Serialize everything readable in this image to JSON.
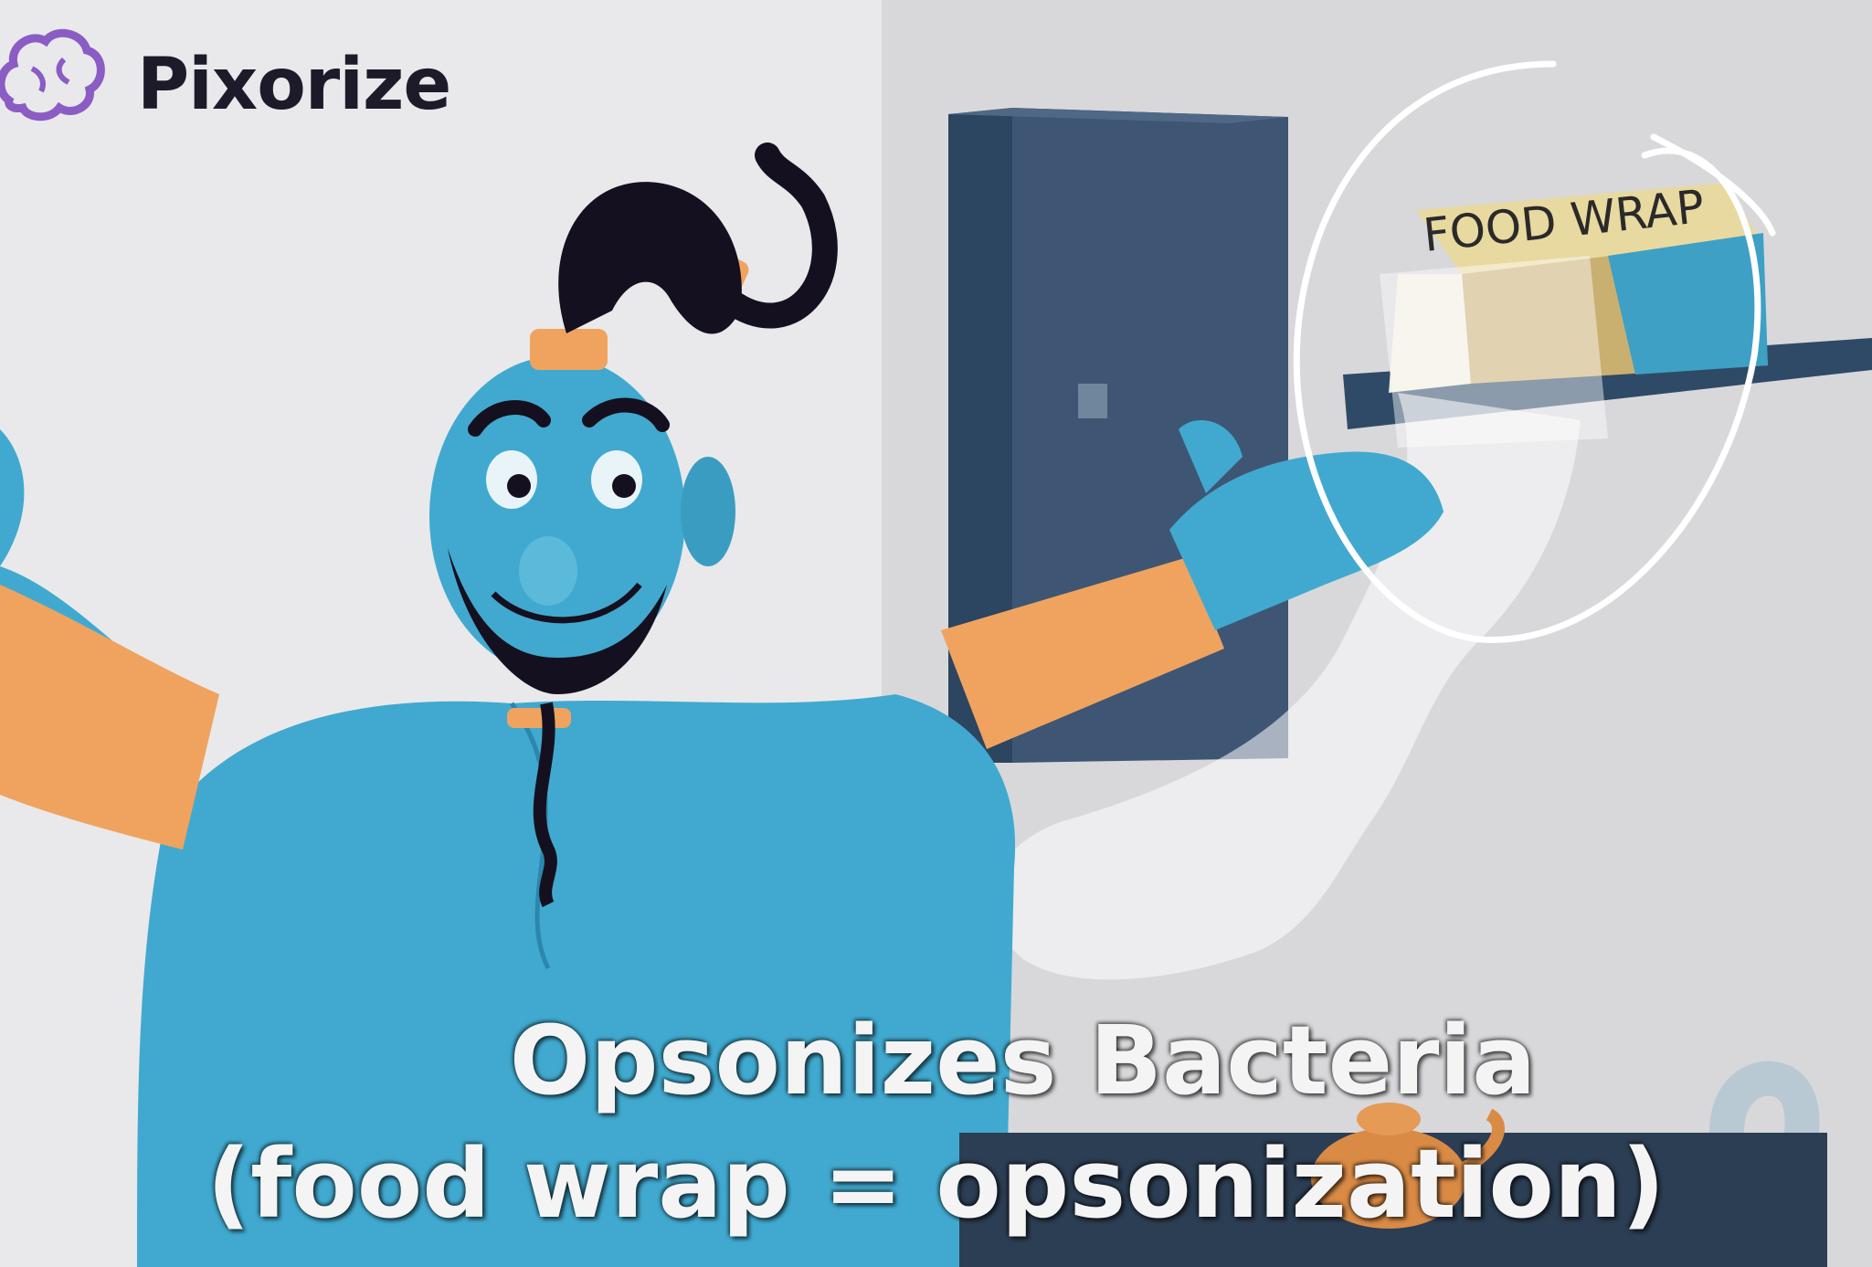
{
  "brand": {
    "name": "Pixorize"
  },
  "box_label": "FOOD WRAP",
  "caption": {
    "line1": "Opsonizes Bacteria",
    "line2": "(food wrap = opsonization)"
  },
  "colors": {
    "genie_skin": "#41a9cf",
    "gold": "#f0a35f",
    "hair": "#15101f",
    "wall_left": "#e8e8ea",
    "wall_right": "#d7d7da",
    "fridge": "#3c5470",
    "highlight_circle": "#ffffff"
  }
}
